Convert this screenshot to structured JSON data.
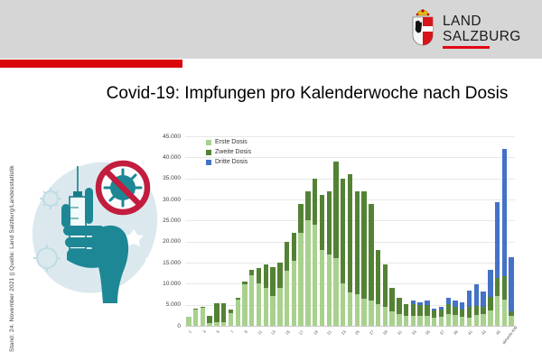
{
  "header": {
    "logo": {
      "line1": "LAND",
      "line2": "SALZBURG"
    },
    "band_color": "#d6d6d6",
    "accent_red": "#d9070c"
  },
  "title": "Covid-19: Impfungen pro Kalenderwoche nach Dosis",
  "sidebar_caption": "Stand: 24. November 2021 || Quelle: Land Salzburg/Landesstatistik",
  "illustration": {
    "alt": "Hand mit Spritze und durchgestrichenem Virus-Symbol"
  },
  "chart_data": {
    "type": "bar",
    "stacked": true,
    "title": "",
    "xlabel": "",
    "ylabel": "",
    "ylim": [
      0,
      45000
    ],
    "ytick_step": 5000,
    "ytick_labels": [
      "0",
      "5.000",
      "10.000",
      "15.000",
      "20.000",
      "25.000",
      "30.000",
      "35.000",
      "40.000",
      "45.000"
    ],
    "grid": true,
    "legend_position": "top-left",
    "categories": [
      "1",
      "2",
      "3",
      "4",
      "5",
      "6",
      "7",
      "8",
      "9",
      "10",
      "11",
      "12",
      "13",
      "14",
      "15",
      "16",
      "17",
      "18",
      "19",
      "20",
      "21",
      "22",
      "23",
      "24",
      "25",
      "26",
      "27",
      "28",
      "29",
      "30",
      "31",
      "32",
      "33",
      "34",
      "35",
      "36",
      "37",
      "38",
      "39",
      "40",
      "41",
      "42",
      "43",
      "44",
      "45",
      "46",
      "47"
    ],
    "xtick_every": 2,
    "last_xtick_label": "aktuelle KW",
    "series": [
      {
        "name": "Erste Dosis",
        "color": "#a9d18e",
        "values": [
          2100,
          4000,
          4400,
          600,
          900,
          800,
          2900,
          6300,
          9800,
          11900,
          10100,
          9100,
          7000,
          9000,
          13000,
          15500,
          22000,
          25000,
          24000,
          18000,
          17000,
          16000,
          10000,
          8000,
          7500,
          6500,
          6000,
          5200,
          4500,
          3400,
          2700,
          2400,
          2400,
          2300,
          2300,
          2000,
          2200,
          2700,
          2600,
          2200,
          1900,
          2500,
          2800,
          3600,
          7000,
          6300,
          2400
        ]
      },
      {
        "name": "Zweite Dosis",
        "color": "#548235",
        "values": [
          0,
          100,
          200,
          1800,
          4400,
          4500,
          1000,
          400,
          600,
          1400,
          3600,
          5400,
          7000,
          6000,
          7000,
          6500,
          7000,
          7000,
          11000,
          13000,
          15000,
          23000,
          25000,
          28000,
          24500,
          25500,
          23000,
          12800,
          10000,
          5600,
          3900,
          2800,
          2800,
          2600,
          2600,
          1700,
          1700,
          2400,
          1900,
          1600,
          2600,
          2200,
          1700,
          3200,
          4300,
          5400,
          1100
        ]
      },
      {
        "name": "Dritte Dosis",
        "color": "#4472c4",
        "values": [
          0,
          0,
          0,
          0,
          0,
          0,
          0,
          0,
          0,
          0,
          0,
          0,
          0,
          0,
          0,
          0,
          0,
          0,
          0,
          0,
          0,
          0,
          0,
          0,
          0,
          0,
          0,
          0,
          0,
          0,
          0,
          0,
          700,
          700,
          1000,
          400,
          600,
          1500,
          1400,
          1800,
          3900,
          5200,
          3600,
          6400,
          18000,
          30300,
          12800
        ]
      }
    ]
  }
}
